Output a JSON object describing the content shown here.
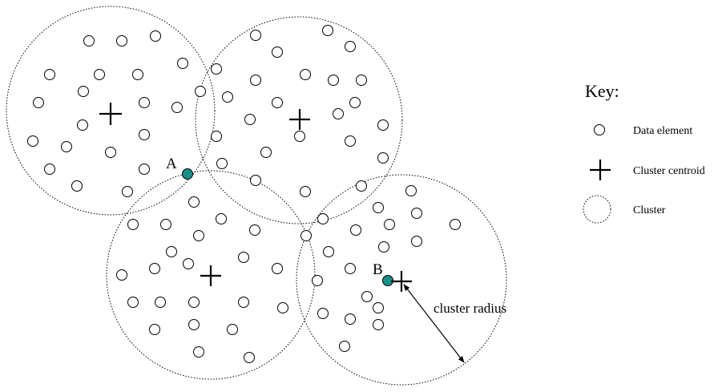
{
  "colors": {
    "stroke": "#000000",
    "highlight": "#1a8f8a",
    "background": "#ffffff"
  },
  "key": {
    "title": "Key:",
    "items": [
      {
        "icon": "data-element-icon",
        "label": "Data element"
      },
      {
        "icon": "cluster-centroid-icon",
        "label": "Cluster centroid"
      },
      {
        "icon": "cluster-icon",
        "label": "Cluster"
      }
    ]
  },
  "points": [
    {
      "label": "A"
    },
    {
      "label": "B"
    }
  ],
  "annotation": {
    "radius_label": "cluster radius"
  }
}
